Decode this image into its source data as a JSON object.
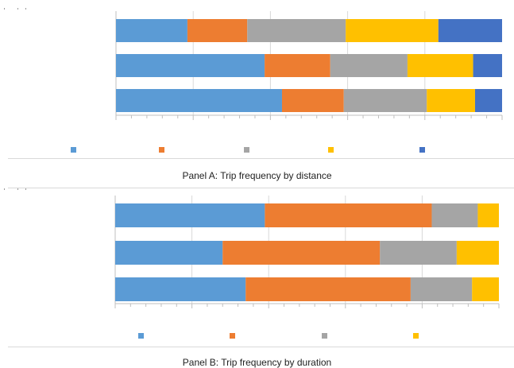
{
  "colors": {
    "blue": "#5B9BD5",
    "orange": "#ED7D31",
    "gray": "#A5A5A5",
    "yellow": "#FFC000",
    "darkblue": "#4472C4",
    "gridline": "#d9d9d9",
    "axis": "#bfbfbf"
  },
  "chart_data": [
    {
      "type": "bar",
      "orientation": "horizontal",
      "stacked": "100%",
      "caption": "Panel A: Trip frequency by distance",
      "categories": [
        "",
        "",
        ""
      ],
      "series": [
        {
          "color": "#5B9BD5",
          "values": [
            18.5,
            38.5,
            43.0
          ]
        },
        {
          "color": "#ED7D31",
          "values": [
            15.5,
            17.0,
            16.0
          ]
        },
        {
          "color": "#A5A5A5",
          "values": [
            25.5,
            20.0,
            21.5
          ]
        },
        {
          "color": "#FFC000",
          "values": [
            24.0,
            17.0,
            12.5
          ]
        },
        {
          "color": "#4472C4",
          "values": [
            16.5,
            7.5,
            7.0
          ]
        }
      ],
      "xlim": [
        0,
        100
      ],
      "grid": true,
      "legend_position": "bottom"
    },
    {
      "type": "bar",
      "orientation": "horizontal",
      "stacked": "100%",
      "caption": "Panel B: Trip frequency by duration",
      "categories": [
        "",
        "",
        ""
      ],
      "series": [
        {
          "color": "#5B9BD5",
          "values": [
            39.0,
            28.0,
            34.0
          ]
        },
        {
          "color": "#ED7D31",
          "values": [
            43.5,
            41.0,
            43.0
          ]
        },
        {
          "color": "#A5A5A5",
          "values": [
            12.0,
            20.0,
            16.0
          ]
        },
        {
          "color": "#FFC000",
          "values": [
            5.5,
            11.0,
            7.0
          ]
        }
      ],
      "xlim": [
        0,
        100
      ],
      "grid": true,
      "legend_position": "bottom"
    }
  ]
}
